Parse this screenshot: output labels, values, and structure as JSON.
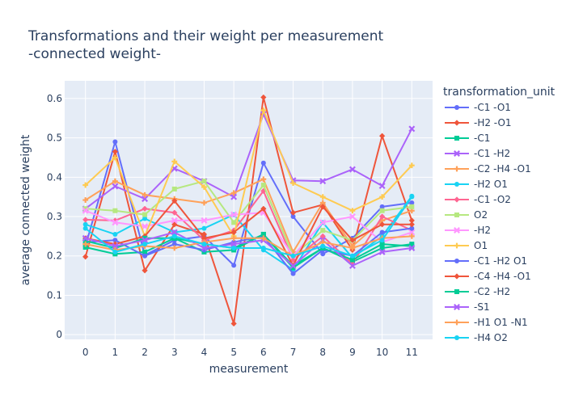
{
  "chart_data": {
    "type": "line",
    "title_line1": "Transformations and their weight per measurement",
    "title_line2": "-connected weight-",
    "xlabel": "measurement",
    "ylabel": "average connected weight",
    "legend_title": "transformation_unit",
    "legend_placement": "right",
    "grid": true,
    "xlim": [
      -0.7,
      11.7
    ],
    "ylim": [
      -0.012,
      0.645
    ],
    "x_ticks": [
      0,
      1,
      2,
      3,
      4,
      5,
      6,
      7,
      8,
      9,
      10,
      11
    ],
    "y_ticks": [
      0,
      0.1,
      0.2,
      0.3,
      0.4,
      0.5,
      0.6
    ],
    "plot_bg": "#e5ecf6",
    "x": [
      0,
      1,
      2,
      3,
      4,
      5,
      6,
      7,
      8,
      9,
      10,
      11
    ],
    "series": [
      {
        "name": "-C1 -O1",
        "color": "#636efa",
        "marker": "circle",
        "values": [
          0.225,
          0.49,
          0.202,
          0.24,
          0.25,
          0.176,
          0.436,
          0.3,
          0.205,
          0.245,
          0.325,
          0.335
        ]
      },
      {
        "name": "-H2 -O1",
        "color": "#EF553B",
        "marker": "diamond",
        "values": [
          0.198,
          0.465,
          0.163,
          0.28,
          0.255,
          0.028,
          0.603,
          0.31,
          0.33,
          0.215,
          0.505,
          0.29
        ]
      },
      {
        "name": "-C1",
        "color": "#00cc96",
        "marker": "square",
        "values": [
          0.222,
          0.205,
          0.21,
          0.245,
          0.21,
          0.215,
          0.255,
          0.175,
          0.22,
          0.185,
          0.22,
          0.23
        ]
      },
      {
        "name": "-C1 -H2",
        "color": "#ab63fa",
        "marker": "x",
        "values": [
          0.32,
          0.377,
          0.345,
          0.422,
          0.39,
          0.35,
          0.56,
          0.392,
          0.39,
          0.42,
          0.378,
          0.523
        ]
      },
      {
        "name": "-C2 -H4 -O1",
        "color": "#FFA15A",
        "marker": "cross",
        "values": [
          0.342,
          0.39,
          0.355,
          0.345,
          0.335,
          0.36,
          0.395,
          0.21,
          0.335,
          0.225,
          0.29,
          0.315
        ]
      },
      {
        "name": "-H2 O1",
        "color": "#19d3f3",
        "marker": "circle",
        "values": [
          0.28,
          0.255,
          0.295,
          0.26,
          0.27,
          0.305,
          0.215,
          0.165,
          0.285,
          0.195,
          0.25,
          0.352
        ]
      },
      {
        "name": "-C1 -O2",
        "color": "#FF6692",
        "marker": "diamond",
        "values": [
          0.292,
          0.29,
          0.32,
          0.31,
          0.24,
          0.265,
          0.365,
          0.19,
          0.25,
          0.18,
          0.3,
          0.265
        ]
      },
      {
        "name": "O2",
        "color": "#B6E880",
        "marker": "square",
        "values": [
          0.32,
          0.315,
          0.305,
          0.37,
          0.39,
          0.285,
          0.38,
          0.2,
          0.265,
          0.24,
          0.315,
          0.325
        ]
      },
      {
        "name": "-H2",
        "color": "#FF97FF",
        "marker": "x",
        "values": [
          0.315,
          0.285,
          0.275,
          0.29,
          0.29,
          0.305,
          0.31,
          0.2,
          0.285,
          0.3,
          0.235,
          0.26
        ]
      },
      {
        "name": "O1",
        "color": "#FECB52",
        "marker": "cross",
        "values": [
          0.38,
          0.45,
          0.25,
          0.44,
          0.375,
          0.25,
          0.57,
          0.385,
          0.35,
          0.315,
          0.35,
          0.43
        ]
      },
      {
        "name": "-C1 -H2 O1",
        "color": "#636efa",
        "marker": "circle",
        "values": [
          0.235,
          0.24,
          0.2,
          0.23,
          0.215,
          0.235,
          0.25,
          0.155,
          0.215,
          0.2,
          0.26,
          0.27
        ]
      },
      {
        "name": "-C4 -H4 -O1",
        "color": "#EF553B",
        "marker": "diamond",
        "values": [
          0.245,
          0.23,
          0.25,
          0.34,
          0.245,
          0.26,
          0.32,
          0.175,
          0.325,
          0.24,
          0.28,
          0.28
        ]
      },
      {
        "name": "-C2 -H2",
        "color": "#00cc96",
        "marker": "square",
        "values": [
          0.238,
          0.22,
          0.245,
          0.245,
          0.23,
          0.22,
          0.255,
          0.17,
          0.22,
          0.19,
          0.23,
          0.225
        ]
      },
      {
        "name": "-S1",
        "color": "#ab63fa",
        "marker": "x",
        "values": [
          0.245,
          0.225,
          0.24,
          0.26,
          0.22,
          0.23,
          0.24,
          0.175,
          0.24,
          0.175,
          0.21,
          0.22
        ]
      },
      {
        "name": "-H1 O1 -N1",
        "color": "#FFA15A",
        "marker": "cross",
        "values": [
          0.23,
          0.215,
          0.225,
          0.22,
          0.235,
          0.245,
          0.245,
          0.2,
          0.235,
          0.22,
          0.245,
          0.25
        ]
      },
      {
        "name": "-H4 O2",
        "color": "#19d3f3",
        "marker": "circle",
        "values": [
          0.27,
          0.21,
          0.23,
          0.25,
          0.23,
          0.22,
          0.22,
          0.2,
          0.225,
          0.2,
          0.24,
          0.35
        ]
      }
    ]
  }
}
